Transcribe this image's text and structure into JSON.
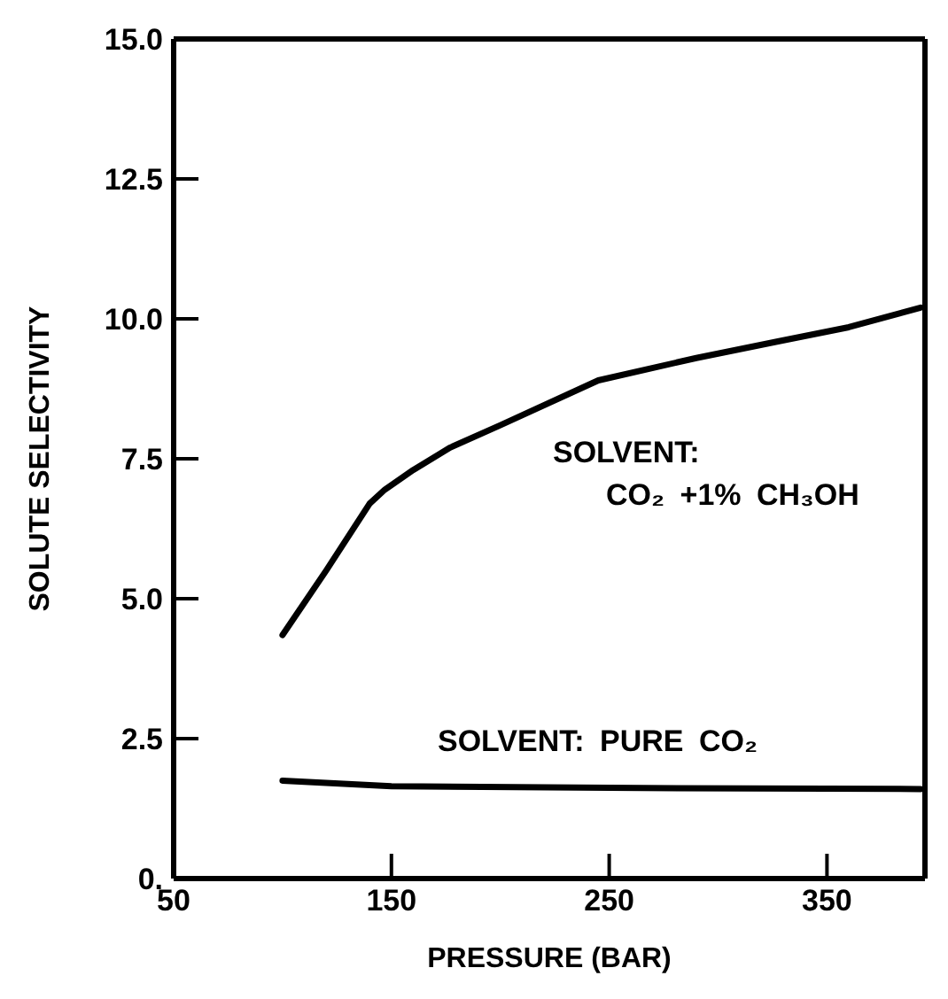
{
  "chart_data": {
    "type": "line",
    "xlabel": "PRESSURE (BAR)",
    "ylabel": "SOLUTE SELECTIVITY",
    "series": [
      {
        "name": "SOLVENT: CO₂ +1% CH₃OH",
        "color": "#000000",
        "x": [
          100,
          120,
          140,
          147,
          160,
          177,
          200,
          245,
          290,
          328,
          360,
          393
        ],
        "values": [
          4.35,
          5.5,
          6.7,
          6.95,
          7.3,
          7.7,
          8.1,
          8.9,
          9.3,
          9.6,
          9.85,
          10.2
        ]
      },
      {
        "name": "SOLVENT: PURE CO₂",
        "color": "#000000",
        "x": [
          100,
          150,
          250,
          393
        ],
        "values": [
          1.75,
          1.65,
          1.62,
          1.6
        ]
      }
    ],
    "xlim": [
      50,
      395
    ],
    "xticks": [
      50,
      150,
      250,
      350
    ],
    "ylim": [
      0,
      15
    ],
    "yticks": [
      {
        "value": 0,
        "label": "0."
      },
      2.5,
      {
        "value": 5,
        "label": "5.0"
      },
      7.5,
      {
        "value": 10,
        "label": "10.0"
      },
      12.5,
      {
        "value": 15,
        "label": "15.0"
      }
    ],
    "grid": false,
    "legend": false,
    "marker": "none",
    "line_style": "solid"
  }
}
